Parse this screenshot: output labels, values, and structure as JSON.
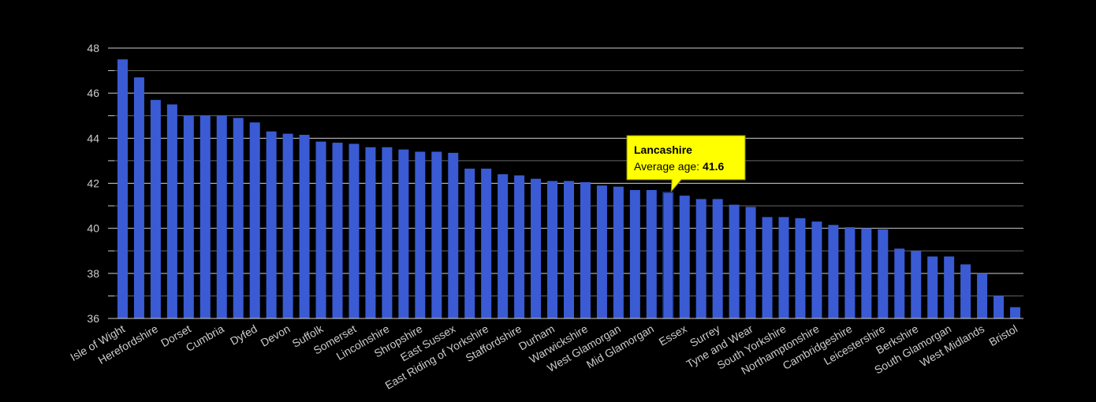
{
  "chart_data": {
    "type": "bar",
    "categories": [
      "Isle of Wight",
      null,
      "Herefordshire",
      null,
      "Dorset",
      null,
      "Cumbria",
      null,
      "Dyfed",
      null,
      "Devon",
      null,
      "Suffolk",
      null,
      "Somerset",
      null,
      "Lincolnshire",
      null,
      "Shropshire",
      null,
      "East Sussex",
      null,
      "East Riding of Yorkshire",
      null,
      "Staffordshire",
      null,
      "Durham",
      null,
      "Warwickshire",
      null,
      "West Glamorgan",
      null,
      "Mid Glamorgan",
      null,
      "Essex",
      null,
      "Surrey",
      null,
      "Tyne and Wear",
      null,
      "South Yorkshire",
      null,
      "Northamptonshire",
      null,
      "Cambridgeshire",
      null,
      "Leicestershire",
      null,
      "Berkshire",
      null,
      "South Glamorgan",
      null,
      "West Midlands",
      null,
      "Bristol"
    ],
    "values": [
      47.5,
      46.7,
      45.7,
      45.5,
      45.0,
      45.0,
      45.0,
      44.9,
      44.7,
      44.3,
      44.2,
      44.15,
      43.85,
      43.8,
      43.75,
      43.6,
      43.6,
      43.5,
      43.4,
      43.4,
      43.35,
      42.65,
      42.65,
      42.4,
      42.35,
      42.2,
      42.1,
      42.1,
      42.05,
      41.9,
      41.85,
      41.7,
      41.7,
      41.6,
      41.45,
      41.3,
      41.3,
      41.05,
      40.95,
      40.5,
      40.5,
      40.45,
      40.3,
      40.15,
      40.05,
      40.0,
      39.95,
      39.1,
      39.0,
      38.75,
      38.75,
      38.4,
      38.0,
      37.0,
      36.5
    ],
    "color": "#3a5bd3",
    "ylim": [
      36,
      48
    ],
    "yticks": [
      36,
      38,
      40,
      42,
      44,
      46,
      48
    ],
    "minor_yticks": [
      37,
      39,
      41,
      43,
      45,
      47
    ],
    "grid": true,
    "tooltip": {
      "title": "Lancashire",
      "label": "Average age:"
    }
  }
}
